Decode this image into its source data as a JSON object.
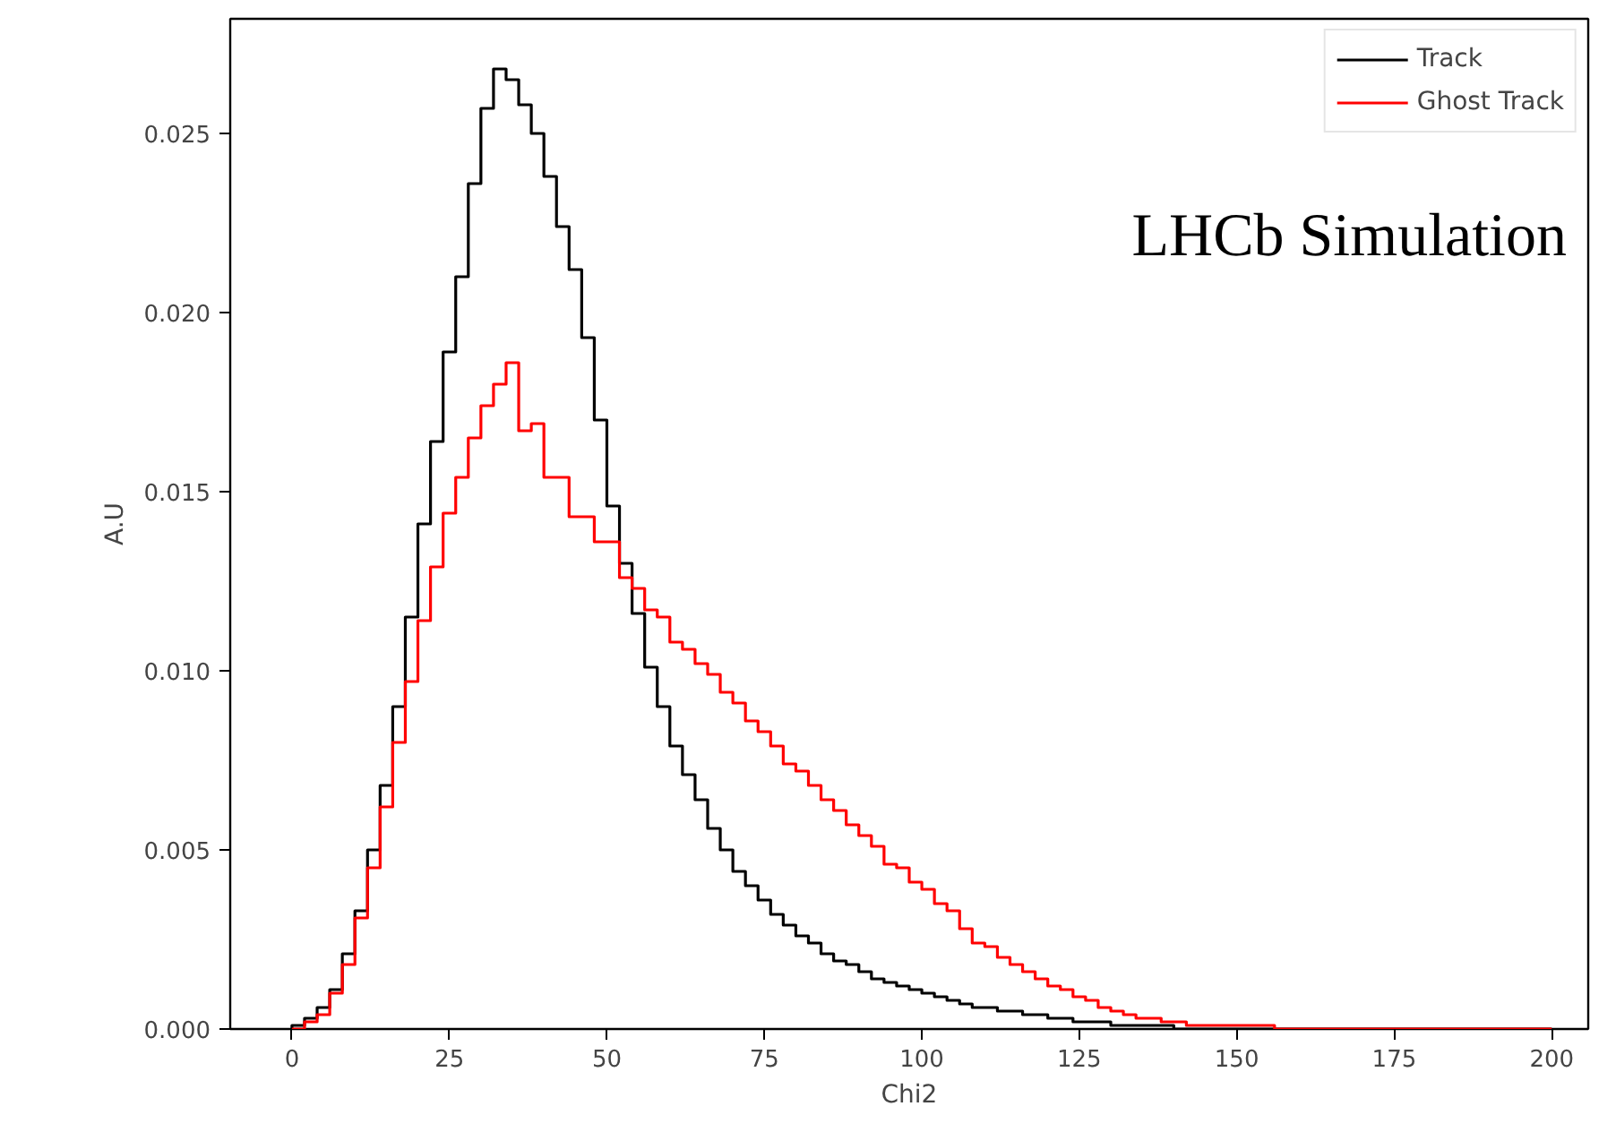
{
  "chart_data": {
    "type": "histogram",
    "xlabel": "Chi2",
    "ylabel": "A.U",
    "annotations": [
      "LHCb Simulation"
    ],
    "bins": [
      0,
      2,
      4,
      6,
      8,
      10,
      12,
      14,
      16,
      18,
      20,
      22,
      24,
      26,
      28,
      30,
      32,
      34,
      36,
      38,
      40,
      42,
      44,
      46,
      48,
      50,
      52,
      54,
      56,
      58,
      60,
      62,
      64,
      66,
      68,
      70,
      72,
      74,
      76,
      78,
      80,
      82,
      84,
      86,
      88,
      90,
      92,
      94,
      96,
      98,
      100,
      102,
      104,
      106,
      108,
      110,
      112,
      114,
      116,
      118,
      120,
      122,
      124,
      126,
      128,
      130,
      132,
      134,
      136,
      138,
      140,
      142,
      144,
      146,
      148,
      150,
      152,
      154,
      156,
      158,
      160,
      162,
      164,
      166,
      168,
      170,
      172,
      174,
      176,
      178,
      180,
      182,
      184,
      186,
      188,
      190,
      192,
      194,
      196,
      198,
      200
    ],
    "series": [
      {
        "name": "Track",
        "color": "#000000",
        "values": [
          0.0001,
          0.0003,
          0.0006,
          0.0011,
          0.0021,
          0.0033,
          0.005,
          0.0068,
          0.009,
          0.0115,
          0.0141,
          0.0164,
          0.0189,
          0.021,
          0.0236,
          0.0257,
          0.0268,
          0.0265,
          0.0258,
          0.025,
          0.0238,
          0.0224,
          0.0212,
          0.0193,
          0.017,
          0.0146,
          0.013,
          0.0116,
          0.0101,
          0.009,
          0.0079,
          0.0071,
          0.0064,
          0.0056,
          0.005,
          0.0044,
          0.004,
          0.0036,
          0.0032,
          0.0029,
          0.0026,
          0.0024,
          0.0021,
          0.0019,
          0.0018,
          0.0016,
          0.0014,
          0.0013,
          0.0012,
          0.0011,
          0.001,
          0.0009,
          0.0008,
          0.0007,
          0.0006,
          0.0006,
          0.0005,
          0.0005,
          0.0004,
          0.0004,
          0.0003,
          0.0003,
          0.0002,
          0.0002,
          0.0002,
          0.0001,
          0.0001,
          0.0001,
          0.0001,
          0.0001,
          0,
          0,
          0,
          0,
          0,
          0,
          0,
          0,
          0,
          0,
          0,
          0,
          0,
          0,
          0,
          0,
          0,
          0,
          0,
          0,
          0,
          0,
          0,
          0,
          0,
          0,
          0,
          0,
          0,
          0
        ]
      },
      {
        "name": "Ghost Track",
        "color": "#ff0000",
        "values": [
          0,
          0.0002,
          0.0004,
          0.001,
          0.0018,
          0.0031,
          0.0045,
          0.0062,
          0.008,
          0.0097,
          0.0114,
          0.0129,
          0.0144,
          0.0154,
          0.0165,
          0.0174,
          0.018,
          0.0186,
          0.0167,
          0.0169,
          0.0154,
          0.0154,
          0.0143,
          0.0143,
          0.0136,
          0.0136,
          0.0126,
          0.0123,
          0.0117,
          0.0115,
          0.0108,
          0.0106,
          0.0102,
          0.0099,
          0.0094,
          0.0091,
          0.0086,
          0.0083,
          0.0079,
          0.0074,
          0.0072,
          0.0068,
          0.0064,
          0.0061,
          0.0057,
          0.0054,
          0.0051,
          0.0046,
          0.0045,
          0.0041,
          0.0039,
          0.0035,
          0.0033,
          0.0028,
          0.0024,
          0.0023,
          0.002,
          0.0018,
          0.0016,
          0.0014,
          0.0012,
          0.0011,
          0.0009,
          0.0008,
          0.0006,
          0.0005,
          0.0004,
          0.0003,
          0.0003,
          0.0002,
          0.0002,
          0.0001,
          0.0001,
          0.0001,
          0.0001,
          0.0001,
          0.0001,
          0.0001,
          0,
          0,
          0,
          0,
          0,
          0,
          0,
          0,
          0,
          0,
          0,
          0,
          0,
          0,
          0,
          0,
          0,
          0,
          0,
          0,
          0,
          0
        ]
      }
    ],
    "xlim": [
      -9.8,
      205.8
    ],
    "ylim": [
      0,
      0.0282
    ],
    "xticks": [
      0,
      25,
      50,
      75,
      100,
      125,
      150,
      175,
      200
    ],
    "yticks": [
      {
        "value": 0,
        "label": "0.000"
      },
      {
        "value": 0.005,
        "label": "0.005"
      },
      {
        "value": 0.01,
        "label": "0.010"
      },
      {
        "value": 0.015,
        "label": "0.015"
      },
      {
        "value": 0.02,
        "label": "0.020"
      },
      {
        "value": 0.025,
        "label": "0.025"
      }
    ],
    "legend": "top right",
    "grid": false
  }
}
